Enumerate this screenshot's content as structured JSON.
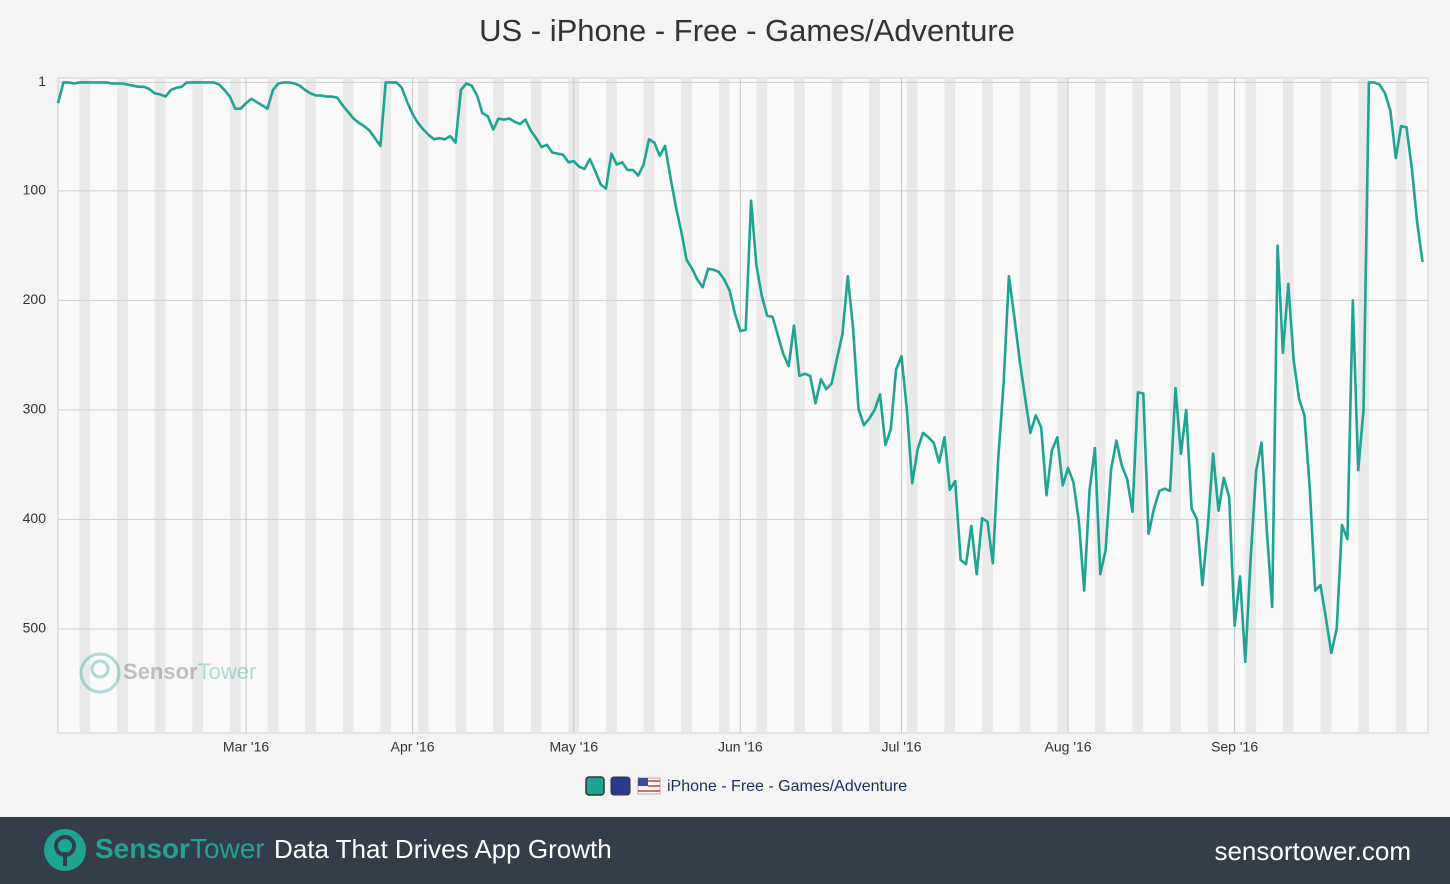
{
  "chart_data": {
    "type": "line",
    "title": "US - iPhone - Free - Games/Adventure",
    "xlim": [
      0,
      255
    ],
    "xticks": [
      {
        "value": 35,
        "label": "Mar '16"
      },
      {
        "value": 66,
        "label": "Apr '16"
      },
      {
        "value": 96,
        "label": "May '16"
      },
      {
        "value": 127,
        "label": "Jun '16"
      },
      {
        "value": 157,
        "label": "Jul '16"
      },
      {
        "value": 188,
        "label": "Aug '16"
      },
      {
        "value": 219,
        "label": "Sep '16"
      }
    ],
    "ylim": [
      -3,
      595
    ],
    "y_inverted": true,
    "yticks": [
      1,
      100,
      200,
      300,
      400,
      500
    ],
    "grid": true,
    "series": [
      {
        "name": "iPhone - Free - Games/Adventure",
        "color": "#1fa393",
        "values": [
          20,
          1,
          1,
          2,
          1,
          1,
          1,
          1,
          1,
          1,
          2,
          2,
          2,
          3,
          4,
          5,
          5,
          7,
          11,
          12,
          14,
          8,
          6,
          5,
          1,
          1,
          1,
          1,
          1,
          1,
          3,
          8,
          14,
          25,
          25,
          20,
          16,
          19,
          22,
          25,
          8,
          2,
          1,
          1,
          2,
          4,
          8,
          11,
          13,
          13,
          14,
          14,
          15,
          22,
          28,
          34,
          38,
          41,
          45,
          52,
          59,
          1,
          1,
          1,
          6,
          19,
          30,
          38,
          44,
          49,
          53,
          52,
          53,
          50,
          56,
          8,
          2,
          4,
          13,
          29,
          32,
          44,
          34,
          35,
          34,
          37,
          39,
          35,
          45,
          52,
          60,
          58,
          65,
          66,
          67,
          74,
          73,
          78,
          80,
          71,
          82,
          94,
          98,
          66,
          76,
          74,
          81,
          81,
          86,
          76,
          53,
          56,
          68,
          59,
          88,
          114,
          137,
          163,
          171,
          181,
          188,
          171,
          172,
          174,
          181,
          191,
          212,
          228,
          227,
          109,
          168,
          196,
          214,
          215,
          232,
          249,
          260,
          223,
          269,
          267,
          269,
          294,
          272,
          281,
          276,
          253,
          231,
          178,
          226,
          299,
          314,
          308,
          300,
          286,
          332,
          318,
          263,
          251,
          300,
          367,
          336,
          321,
          325,
          330,
          348,
          325,
          373,
          365,
          437,
          441,
          406,
          450,
          399,
          402,
          440,
          345,
          276,
          178,
          215,
          255,
          289,
          321,
          305,
          316,
          378,
          337,
          325,
          369,
          353,
          366,
          401,
          465,
          374,
          335,
          450,
          428,
          355,
          328,
          351,
          363,
          393,
          284,
          285,
          413,
          390,
          374,
          372,
          374,
          280,
          340,
          300,
          390,
          400,
          460,
          408,
          340,
          392,
          362,
          380,
          497,
          452,
          530,
          435,
          356,
          330,
          410,
          480,
          150,
          248,
          185,
          255,
          290,
          305,
          372,
          465,
          460,
          490,
          522,
          500,
          405,
          418,
          200,
          355,
          300,
          1,
          1,
          3,
          11,
          27,
          70,
          41,
          42,
          80,
          130,
          165
        ]
      }
    ],
    "watermark": [
      "Sensor",
      "Tower"
    ]
  },
  "footer": {
    "brand": [
      "Sensor",
      "Tower"
    ],
    "tagline": "Data That Drives App Growth",
    "url": "sensortower.com"
  }
}
